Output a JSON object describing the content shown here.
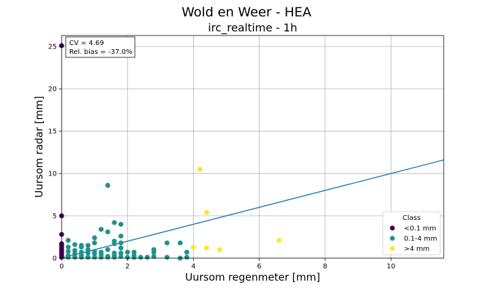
{
  "chart_data": {
    "type": "scatter",
    "suptitle": "Wold en Weer - HEA",
    "title": "irc_realtime - 1h",
    "xlabel": "Uursom regenmeter [mm]",
    "ylabel": "Uursom radar [mm]",
    "xlim": [
      0,
      11.6
    ],
    "ylim": [
      0,
      26.3
    ],
    "xticks": [
      0,
      2,
      4,
      6,
      8,
      10
    ],
    "yticks": [
      0,
      5,
      10,
      15,
      20,
      25
    ],
    "grid": true,
    "stats": {
      "cv": "CV = 4.69",
      "bias": "Rel. bias = -37.0%"
    },
    "legend": {
      "title": "Class",
      "placement": "lower-right",
      "entries": [
        {
          "label": "<0.1 mm",
          "color": "#440154"
        },
        {
          "label": "0.1-4 mm",
          "color": "#21918c"
        },
        {
          "label": ">4 mm",
          "color": "#fde725"
        }
      ]
    },
    "series": [
      {
        "name": "<0.1 mm",
        "color": "#440154",
        "points": [
          [
            0,
            25.1
          ],
          [
            0,
            5.0
          ],
          [
            0,
            2.8
          ],
          [
            0,
            1.7
          ],
          [
            0,
            1.5
          ],
          [
            0,
            1.3
          ],
          [
            0,
            1.1
          ],
          [
            0,
            0.9
          ],
          [
            0,
            0.7
          ],
          [
            0,
            0.5
          ],
          [
            0,
            0.3
          ],
          [
            0,
            0.1
          ]
        ]
      },
      {
        "name": "0.1-4 mm",
        "color": "#21918c",
        "points": [
          [
            0.2,
            2.1
          ],
          [
            0.2,
            1.3
          ],
          [
            0.2,
            0.8
          ],
          [
            0.2,
            0.3
          ],
          [
            0.2,
            0.1
          ],
          [
            0.4,
            1.6
          ],
          [
            0.4,
            0.9
          ],
          [
            0.4,
            0.5
          ],
          [
            0.4,
            0.1
          ],
          [
            0.6,
            1.5
          ],
          [
            0.6,
            1.3
          ],
          [
            0.6,
            0.7
          ],
          [
            0.6,
            0.3
          ],
          [
            0.6,
            0.1
          ],
          [
            0.8,
            1.5
          ],
          [
            0.8,
            1.0
          ],
          [
            0.8,
            0.6
          ],
          [
            0.8,
            0.1
          ],
          [
            1.0,
            2.4
          ],
          [
            1.0,
            1.8
          ],
          [
            1.0,
            0.8
          ],
          [
            1.0,
            0.5
          ],
          [
            1.0,
            0.1
          ],
          [
            1.2,
            3.4
          ],
          [
            1.2,
            0.7
          ],
          [
            1.2,
            0.4
          ],
          [
            1.2,
            0.1
          ],
          [
            1.4,
            8.6
          ],
          [
            1.4,
            3.1
          ],
          [
            1.4,
            1.0
          ],
          [
            1.4,
            0.2
          ],
          [
            1.4,
            0.1
          ],
          [
            1.6,
            4.2
          ],
          [
            1.6,
            2.0
          ],
          [
            1.6,
            1.7
          ],
          [
            1.6,
            0.6
          ],
          [
            1.6,
            0.3
          ],
          [
            1.6,
            0.1
          ],
          [
            1.8,
            4.0
          ],
          [
            1.8,
            2.6
          ],
          [
            1.8,
            1.8
          ],
          [
            1.8,
            1.2
          ],
          [
            1.8,
            0.6
          ],
          [
            1.8,
            0.2
          ],
          [
            2.0,
            0.7
          ],
          [
            2.0,
            0.1
          ],
          [
            2.2,
            0.7
          ],
          [
            2.2,
            0.3
          ],
          [
            2.2,
            0.1
          ],
          [
            2.4,
            0.1
          ],
          [
            2.6,
            0.1
          ],
          [
            2.8,
            1.0
          ],
          [
            2.8,
            0.7
          ],
          [
            2.8,
            0.2
          ],
          [
            3.2,
            1.8
          ],
          [
            3.2,
            0.1
          ],
          [
            3.6,
            1.8
          ],
          [
            3.6,
            0.0
          ],
          [
            3.8,
            0.7
          ],
          [
            3.8,
            0.1
          ]
        ]
      },
      {
        "name": ">4 mm",
        "color": "#fde725",
        "points": [
          [
            4.2,
            10.5
          ],
          [
            4.4,
            5.4
          ],
          [
            4.0,
            1.3
          ],
          [
            4.4,
            1.2
          ],
          [
            4.8,
            1.0
          ],
          [
            6.6,
            2.1
          ]
        ]
      }
    ],
    "regression_line": {
      "color": "#1f77b4",
      "points": [
        [
          0,
          0.0
        ],
        [
          11.6,
          11.6
        ]
      ]
    }
  }
}
